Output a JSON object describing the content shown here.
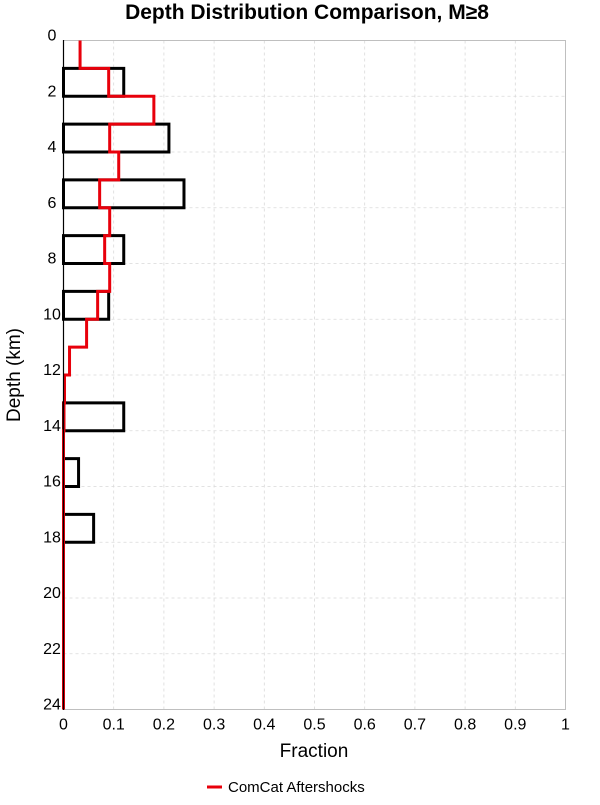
{
  "chart_data": {
    "type": "bar",
    "orientation": "horizontal-step-histogram",
    "title": "Depth Distribution Comparison, M≥8",
    "xlabel": "Fraction",
    "ylabel": "Depth (km)",
    "xlim": [
      0,
      1
    ],
    "ylim": [
      24,
      0
    ],
    "xticks": [
      "0",
      "0.1",
      "0.2",
      "0.3",
      "0.4",
      "0.5",
      "0.6",
      "0.7",
      "0.8",
      "0.9",
      "1"
    ],
    "yticks": [
      "0",
      "2",
      "4",
      "6",
      "8",
      "10",
      "12",
      "14",
      "16",
      "18",
      "20",
      "22",
      "24"
    ],
    "grid": true,
    "legend_position": "bottom-center",
    "bin_edges": [
      0,
      1,
      2,
      3,
      4,
      5,
      6,
      7,
      8,
      9,
      10,
      11,
      12,
      13,
      14,
      15,
      16,
      17,
      18,
      19,
      20,
      21,
      22,
      23,
      24
    ],
    "series": [
      {
        "name": "",
        "style": "outlined-bars",
        "color": "#000000",
        "values": [
          0,
          0.12,
          0,
          0.21,
          0,
          0.24,
          0,
          0.12,
          0,
          0.09,
          0,
          0,
          0,
          0.12,
          0,
          0.03,
          0,
          0.06,
          0,
          0,
          0,
          0,
          0,
          0
        ]
      },
      {
        "name": "ComCat Aftershocks",
        "style": "step-line",
        "color": "#e8000b",
        "values": [
          0.033,
          0.09,
          0.18,
          0.092,
          0.11,
          0.072,
          0.092,
          0.082,
          0.092,
          0.068,
          0.046,
          0.012,
          0.002,
          0.001,
          0,
          0,
          0,
          0,
          0,
          0,
          0,
          0,
          0,
          0
        ]
      }
    ]
  }
}
